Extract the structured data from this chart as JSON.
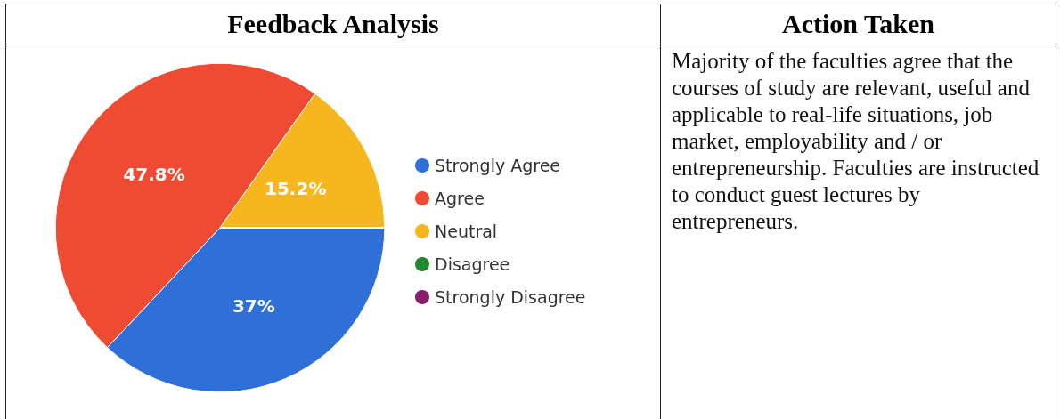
{
  "chart_data": [
    {
      "type": "pie",
      "title": "Feedback Analysis",
      "categories": [
        "Strongly Agree",
        "Agree",
        "Neutral",
        "Disagree",
        "Strongly Disagree"
      ],
      "values": [
        37,
        47.8,
        15.2,
        0,
        0
      ],
      "colors": [
        "#2f6fd8",
        "#ef4a32",
        "#f6b61e",
        "#1f8b2c",
        "#8c1c6c"
      ],
      "value_labels": [
        "37%",
        "47.8%",
        "15.2%",
        null,
        null
      ],
      "legend": "right"
    },
    {
      "type": "other",
      "title": "Action Taken",
      "annotations": [
        "Majority of the faculties agree that the courses of study are relevant, useful and applicable to real-life situations, job market, employability and / or entrepreneurship. Faculties are instructed to conduct guest lectures by entrepreneurs."
      ]
    }
  ]
}
